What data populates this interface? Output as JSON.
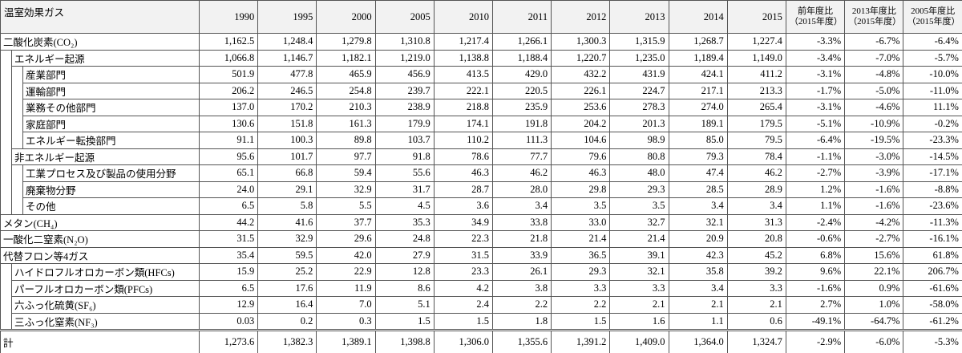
{
  "table": {
    "header": {
      "label": "温室効果ガス",
      "years": [
        1990,
        1995,
        2000,
        2005,
        2010,
        2011,
        2012,
        2013,
        2014,
        2015
      ],
      "ratios": [
        {
          "title": "前年度比",
          "note": "（2015年度）"
        },
        {
          "title": "2013年度比",
          "note": "（2015年度）"
        },
        {
          "title": "2005年度比",
          "note": "（2015年度）"
        }
      ]
    },
    "rows": [
      {
        "label": "二酸化炭素(CO₂)",
        "level": 0,
        "values": [
          "1,162.5",
          "1,248.4",
          "1,279.8",
          "1,310.8",
          "1,217.4",
          "1,266.1",
          "1,300.3",
          "1,315.9",
          "1,268.7",
          "1,227.4"
        ],
        "ratios": [
          "-3.3%",
          "-6.7%",
          "-6.4%"
        ]
      },
      {
        "label": "エネルギー起源",
        "level": 1,
        "values": [
          "1,066.8",
          "1,146.7",
          "1,182.1",
          "1,219.0",
          "1,138.8",
          "1,188.4",
          "1,220.7",
          "1,235.0",
          "1,189.4",
          "1,149.0"
        ],
        "ratios": [
          "-3.4%",
          "-7.0%",
          "-5.7%"
        ]
      },
      {
        "label": "産業部門",
        "level": 2,
        "values": [
          "501.9",
          "477.8",
          "465.9",
          "456.9",
          "413.5",
          "429.0",
          "432.2",
          "431.9",
          "424.1",
          "411.2"
        ],
        "ratios": [
          "-3.1%",
          "-4.8%",
          "-10.0%"
        ]
      },
      {
        "label": "運輸部門",
        "level": 2,
        "values": [
          "206.2",
          "246.5",
          "254.8",
          "239.7",
          "222.1",
          "220.5",
          "226.1",
          "224.7",
          "217.1",
          "213.3"
        ],
        "ratios": [
          "-1.7%",
          "-5.0%",
          "-11.0%"
        ]
      },
      {
        "label": "業務その他部門",
        "level": 2,
        "values": [
          "137.0",
          "170.2",
          "210.3",
          "238.9",
          "218.8",
          "235.9",
          "253.6",
          "278.3",
          "274.0",
          "265.4"
        ],
        "ratios": [
          "-3.1%",
          "-4.6%",
          "11.1%"
        ]
      },
      {
        "label": "家庭部門",
        "level": 2,
        "values": [
          "130.6",
          "151.8",
          "161.3",
          "179.9",
          "174.1",
          "191.8",
          "204.2",
          "201.3",
          "189.1",
          "179.5"
        ],
        "ratios": [
          "-5.1%",
          "-10.9%",
          "-0.2%"
        ]
      },
      {
        "label": "エネルギー転換部門",
        "level": 2,
        "values": [
          "91.1",
          "100.3",
          "89.8",
          "103.7",
          "110.2",
          "111.3",
          "104.6",
          "98.9",
          "85.0",
          "79.5"
        ],
        "ratios": [
          "-6.4%",
          "-19.5%",
          "-23.3%"
        ]
      },
      {
        "label": "非エネルギー起源",
        "level": 1,
        "values": [
          "95.6",
          "101.7",
          "97.7",
          "91.8",
          "78.6",
          "77.7",
          "79.6",
          "80.8",
          "79.3",
          "78.4"
        ],
        "ratios": [
          "-1.1%",
          "-3.0%",
          "-14.5%"
        ]
      },
      {
        "label": "工業プロセス及び製品の使用分野",
        "level": 2,
        "values": [
          "65.1",
          "66.8",
          "59.4",
          "55.6",
          "46.3",
          "46.2",
          "46.3",
          "48.0",
          "47.4",
          "46.2"
        ],
        "ratios": [
          "-2.7%",
          "-3.9%",
          "-17.1%"
        ]
      },
      {
        "label": "廃棄物分野",
        "level": 2,
        "values": [
          "24.0",
          "29.1",
          "32.9",
          "31.7",
          "28.7",
          "28.0",
          "29.8",
          "29.3",
          "28.5",
          "28.9"
        ],
        "ratios": [
          "1.2%",
          "-1.6%",
          "-8.8%"
        ]
      },
      {
        "label": "その他",
        "level": 2,
        "values": [
          "6.5",
          "5.8",
          "5.5",
          "4.5",
          "3.6",
          "3.4",
          "3.5",
          "3.5",
          "3.4",
          "3.4"
        ],
        "ratios": [
          "1.1%",
          "-1.6%",
          "-23.6%"
        ]
      },
      {
        "label": "メタン(CH₄)",
        "level": 0,
        "values": [
          "44.2",
          "41.6",
          "37.7",
          "35.3",
          "34.9",
          "33.8",
          "33.0",
          "32.7",
          "32.1",
          "31.3"
        ],
        "ratios": [
          "-2.4%",
          "-4.2%",
          "-11.3%"
        ]
      },
      {
        "label": "一酸化二窒素(N₂O)",
        "level": 0,
        "values": [
          "31.5",
          "32.9",
          "29.6",
          "24.8",
          "22.3",
          "21.8",
          "21.4",
          "21.4",
          "20.9",
          "20.8"
        ],
        "ratios": [
          "-0.6%",
          "-2.7%",
          "-16.1%"
        ]
      },
      {
        "label": "代替フロン等4ガス",
        "level": 0,
        "values": [
          "35.4",
          "59.5",
          "42.0",
          "27.9",
          "31.5",
          "33.9",
          "36.5",
          "39.1",
          "42.3",
          "45.2"
        ],
        "ratios": [
          "6.8%",
          "15.6%",
          "61.8%"
        ]
      },
      {
        "label": "ハイドロフルオロカーボン類(HFCs)",
        "level": 1,
        "values": [
          "15.9",
          "25.2",
          "22.9",
          "12.8",
          "23.3",
          "26.1",
          "29.3",
          "32.1",
          "35.8",
          "39.2"
        ],
        "ratios": [
          "9.6%",
          "22.1%",
          "206.7%"
        ]
      },
      {
        "label": "パーフルオロカーボン類(PFCs)",
        "level": 1,
        "values": [
          "6.5",
          "17.6",
          "11.9",
          "8.6",
          "4.2",
          "3.8",
          "3.3",
          "3.3",
          "3.4",
          "3.3"
        ],
        "ratios": [
          "-1.6%",
          "0.9%",
          "-61.6%"
        ]
      },
      {
        "label": "六ふっ化硫黄(SF₆)",
        "level": 1,
        "values": [
          "12.9",
          "16.4",
          "7.0",
          "5.1",
          "2.4",
          "2.2",
          "2.2",
          "2.1",
          "2.1",
          "2.1"
        ],
        "ratios": [
          "2.7%",
          "1.0%",
          "-58.0%"
        ]
      },
      {
        "label": "三ふっ化窒素(NF₃)",
        "level": 1,
        "values": [
          "0.03",
          "0.2",
          "0.3",
          "1.5",
          "1.5",
          "1.8",
          "1.5",
          "1.6",
          "1.1",
          "0.6"
        ],
        "ratios": [
          "-49.1%",
          "-64.7%",
          "-61.2%"
        ]
      }
    ],
    "total": {
      "label": "計",
      "values": [
        "1,273.6",
        "1,382.3",
        "1,389.1",
        "1,398.8",
        "1,306.0",
        "1,355.6",
        "1,391.2",
        "1,409.0",
        "1,364.0",
        "1,324.7"
      ],
      "ratios": [
        "-2.9%",
        "-6.0%",
        "-5.3%"
      ]
    }
  }
}
